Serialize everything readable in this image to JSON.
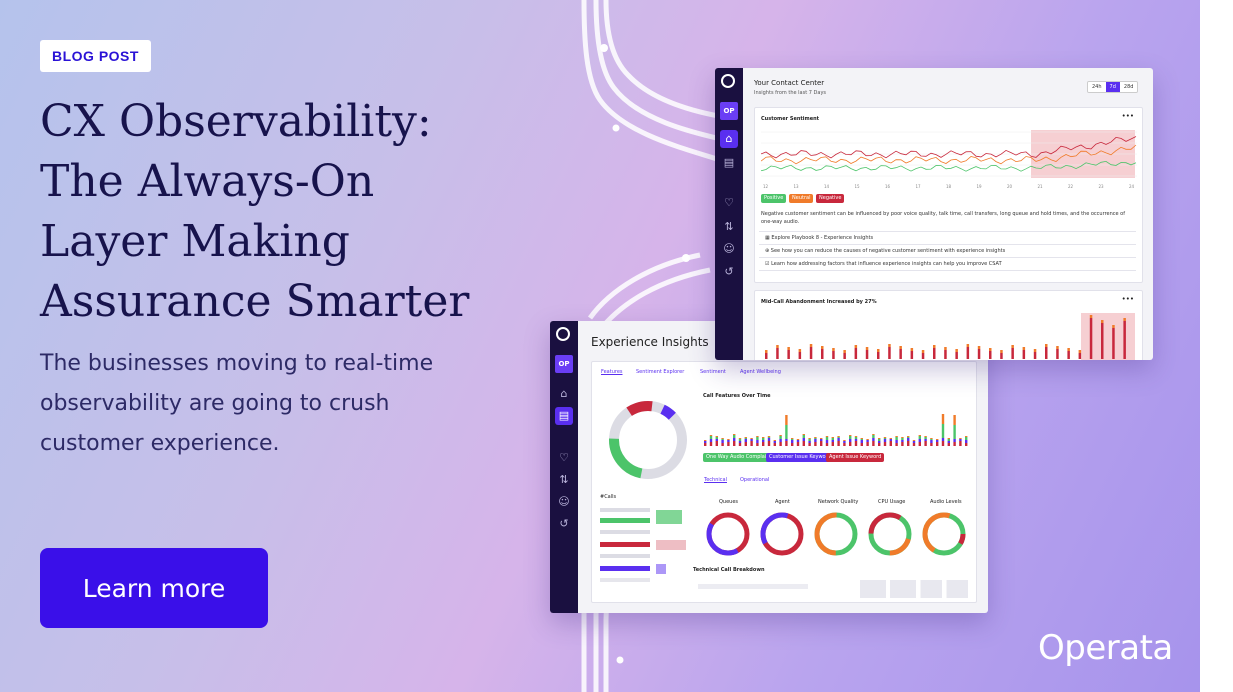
{
  "badge": "BLOG POST",
  "headline": [
    "CX Observability:",
    "The Always-On",
    "Layer Making",
    "Assurance Smarter"
  ],
  "subheadline": [
    "The businesses moving to real-time",
    "observability are going to crush",
    "customer experience."
  ],
  "cta": "Learn more",
  "logo": "Operata",
  "colors": {
    "accent": "#3a0fe9",
    "headline": "#17134c",
    "rail": "#1a1040",
    "positive": "#4cc46a",
    "neutral": "#f07b2a",
    "negative": "#c8283c",
    "purple": "#5a2ff0"
  },
  "dashboard_front": {
    "title": "Your Contact Center",
    "subtitle": "Insights from the last 7 Days",
    "avatar": "OP",
    "ranges": [
      "24h",
      "7d",
      "28d"
    ],
    "selected_range": "7d",
    "sentiment_card": {
      "title": "Customer Sentiment",
      "menu": "•••",
      "x_ticks": [
        "12",
        "13",
        "14",
        "15",
        "16",
        "17",
        "18",
        "19",
        "20",
        "21",
        "22",
        "23",
        "24"
      ],
      "legend": [
        "Positive",
        "Neutral",
        "Negative"
      ],
      "description": "Negative customer sentiment can be influenced by poor voice quality, talk time, call transfers, long queue and hold times, and the occurrence of one-way audio.",
      "links": [
        "Explore Playbook 8 - Experience Insights",
        "See how you can reduce the causes of negative customer sentiment with experience insights",
        "Learn how addressing factors that influence experience insights can help you improve CSAT"
      ]
    },
    "abandon_card": {
      "title": "Mid-Call Abandonment Increased by 27%",
      "menu": "•••"
    }
  },
  "dashboard_back": {
    "title": "Experience Insights",
    "avatar": "OP",
    "tabs": [
      "Features",
      "Sentiment Explorer",
      "Sentiment",
      "Agent Wellbeing"
    ],
    "active_tab": "Features",
    "calls_label": "#Calls",
    "features_chart_title": "Call Features Over Time",
    "feature_legend": [
      "One Way Audio Complaint",
      "Customer Issue Keyword",
      "Agent Issue Keyword"
    ],
    "subtabs": [
      "Technical",
      "Operational"
    ],
    "donut_labels": [
      "Queues",
      "Agent",
      "Network Quality",
      "CPU Usage",
      "Audio Levels"
    ],
    "breakdown_title": "Technical Call Breakdown"
  }
}
